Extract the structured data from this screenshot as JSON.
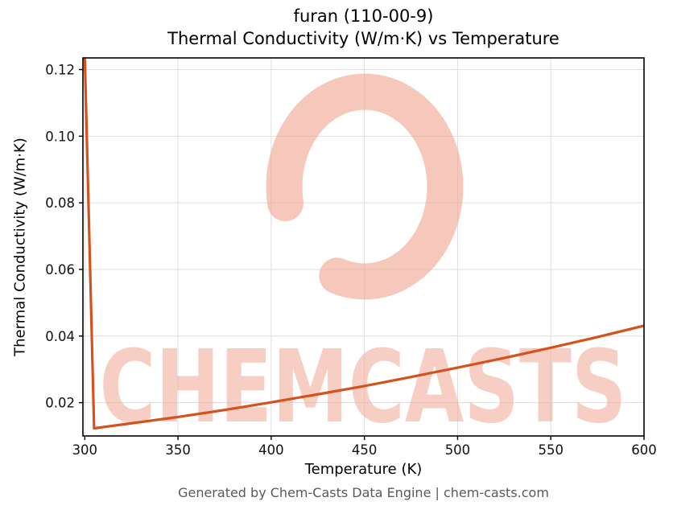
{
  "title": {
    "line1": "furan (110-00-9)",
    "line2": "Thermal Conductivity (W/m·K) vs Temperature"
  },
  "footer": "Generated by Chem-Casts Data Engine | chem-casts.com",
  "watermark": {
    "text": "CHEMCASTS",
    "logo": "c-swirl-logo",
    "color": "#efa691"
  },
  "chart_data": {
    "type": "line",
    "title": "furan (110-00-9) — Thermal Conductivity (W/m·K) vs Temperature",
    "xlabel": "Temperature (K)",
    "ylabel": "Thermal Conductivity (W/m·K)",
    "xlim": [
      299,
      600
    ],
    "ylim": [
      0.01,
      0.1235
    ],
    "xticks": [
      300,
      350,
      400,
      450,
      500,
      550,
      600
    ],
    "yticks": [
      0.02,
      0.04,
      0.06,
      0.08,
      0.1,
      0.12
    ],
    "grid": true,
    "legend": "none",
    "line_color": "#d5521c",
    "line_width": 3.2,
    "series": [
      {
        "name": "thermal-conductivity",
        "points": [
          [
            300,
            0.124
          ],
          [
            305,
            0.0123
          ],
          [
            325,
            0.0138
          ],
          [
            350,
            0.0157
          ],
          [
            375,
            0.0178
          ],
          [
            400,
            0.0201
          ],
          [
            425,
            0.0225
          ],
          [
            450,
            0.025
          ],
          [
            475,
            0.0277
          ],
          [
            500,
            0.0305
          ],
          [
            525,
            0.0334
          ],
          [
            550,
            0.0365
          ],
          [
            575,
            0.0397
          ],
          [
            600,
            0.0431
          ]
        ]
      }
    ]
  }
}
